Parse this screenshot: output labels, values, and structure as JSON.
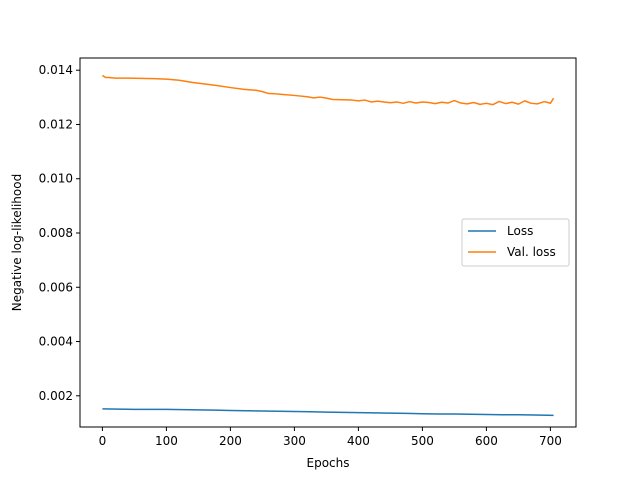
{
  "chart_data": {
    "type": "line",
    "title": "",
    "xlabel": "Epochs",
    "ylabel": "Negative log-likelihood",
    "xlim": [
      -35,
      740
    ],
    "ylim": [
      0.00085,
      0.01445
    ],
    "xticks": [
      0,
      100,
      200,
      300,
      400,
      500,
      600,
      700
    ],
    "yticks": [
      0.002,
      0.004,
      0.006,
      0.008,
      0.01,
      0.012,
      0.014
    ],
    "ytick_labels": [
      "0.002",
      "0.004",
      "0.006",
      "0.008",
      "0.010",
      "0.012",
      "0.014"
    ],
    "grid": false,
    "legend_position": "center-right",
    "series": [
      {
        "name": "Loss",
        "color": "#1f77b4",
        "x": [
          0,
          25,
          50,
          75,
          100,
          125,
          150,
          175,
          200,
          225,
          250,
          275,
          300,
          325,
          350,
          375,
          400,
          425,
          450,
          475,
          500,
          525,
          550,
          575,
          600,
          625,
          650,
          675,
          705
        ],
        "y": [
          0.00152,
          0.00151,
          0.0015,
          0.0015,
          0.0015,
          0.00149,
          0.00148,
          0.00147,
          0.00146,
          0.00145,
          0.00144,
          0.00143,
          0.00142,
          0.00141,
          0.0014,
          0.00139,
          0.00138,
          0.00137,
          0.00136,
          0.00135,
          0.00134,
          0.00133,
          0.00133,
          0.00132,
          0.00131,
          0.0013,
          0.0013,
          0.00129,
          0.00128
        ]
      },
      {
        "name": "Val. loss",
        "color": "#ff7f0e",
        "x": [
          0,
          5,
          10,
          20,
          40,
          60,
          80,
          100,
          120,
          140,
          160,
          180,
          200,
          220,
          240,
          250,
          260,
          270,
          280,
          300,
          320,
          330,
          340,
          350,
          360,
          375,
          390,
          400,
          410,
          420,
          430,
          440,
          450,
          460,
          470,
          480,
          490,
          500,
          510,
          520,
          530,
          540,
          550,
          560,
          570,
          580,
          590,
          600,
          610,
          620,
          630,
          640,
          650,
          660,
          670,
          680,
          690,
          695,
          700,
          705
        ],
        "y": [
          0.01381,
          0.01373,
          0.01373,
          0.01371,
          0.01371,
          0.0137,
          0.01369,
          0.01367,
          0.01363,
          0.01355,
          0.01349,
          0.01343,
          0.01336,
          0.0133,
          0.01326,
          0.01321,
          0.01314,
          0.01313,
          0.01311,
          0.01307,
          0.01302,
          0.01298,
          0.01301,
          0.01297,
          0.01292,
          0.01291,
          0.0129,
          0.01287,
          0.0129,
          0.01283,
          0.01286,
          0.01283,
          0.0128,
          0.01283,
          0.01278,
          0.01284,
          0.01279,
          0.01283,
          0.01281,
          0.01277,
          0.01282,
          0.01279,
          0.01288,
          0.01279,
          0.01276,
          0.01281,
          0.01274,
          0.01278,
          0.01273,
          0.01285,
          0.01277,
          0.01282,
          0.01275,
          0.01287,
          0.01278,
          0.01276,
          0.01284,
          0.01282,
          0.01278,
          0.01297
        ]
      }
    ]
  }
}
